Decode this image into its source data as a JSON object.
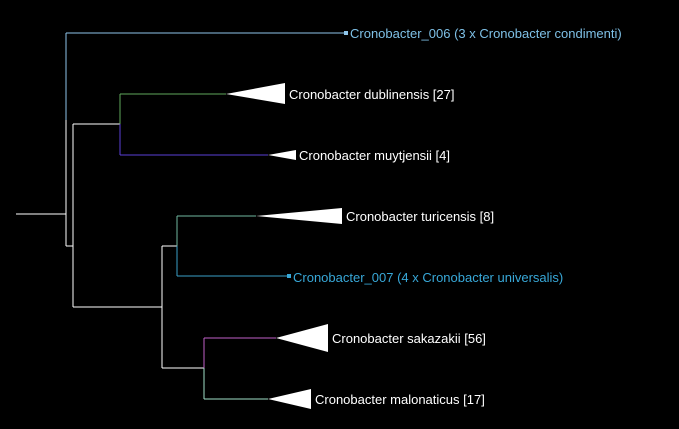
{
  "colors": {
    "background": "#000000",
    "trunk": "#ffffff",
    "c006": "#8ec5ea",
    "dublinensis": "#5fa85c",
    "muytjensii": "#5a3fd6",
    "turicensis": "#6fb8a0",
    "c007": "#3aa0c8",
    "sakazakii": "#c060c8",
    "malonaticus": "#9fe0c8",
    "label_white": "#ffffff",
    "label_blue": "#7ec0e6",
    "label_cyan": "#38a8d8"
  },
  "tree": {
    "leaves": [
      {
        "id": "c006",
        "label": "Cronobacter_006 (3 x Cronobacter condimenti)",
        "collapsed": false
      },
      {
        "id": "dublinensis",
        "label": "Cronobacter dublinensis [27]",
        "collapsed": true
      },
      {
        "id": "muytjensii",
        "label": "Cronobacter muytjensii [4]",
        "collapsed": true
      },
      {
        "id": "turicensis",
        "label": "Cronobacter turicensis [8]",
        "collapsed": true
      },
      {
        "id": "c007",
        "label": "Cronobacter_007 (4 x Cronobacter universalis)",
        "collapsed": false
      },
      {
        "id": "sakazakii",
        "label": "Cronobacter sakazakii [56]",
        "collapsed": true
      },
      {
        "id": "malonaticus",
        "label": "Cronobacter malonaticus [17]",
        "collapsed": true
      }
    ]
  }
}
